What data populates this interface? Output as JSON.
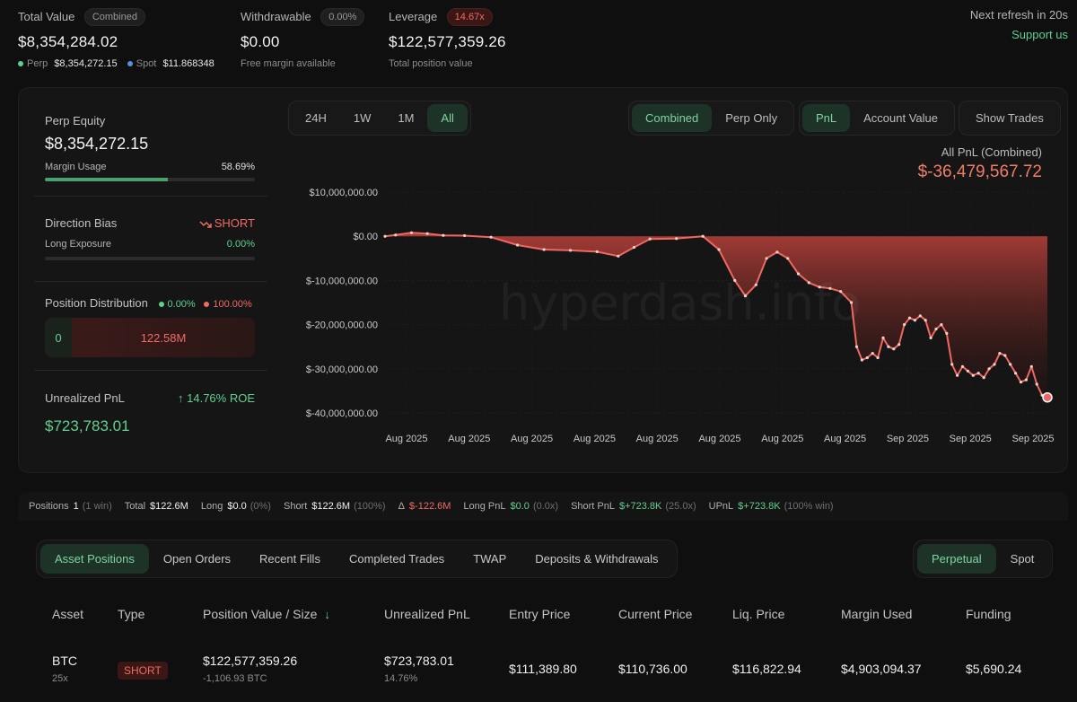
{
  "top": {
    "total_value": {
      "label": "Total Value",
      "pill": "Combined",
      "value": "$8,354,284.02",
      "perp_label": "Perp",
      "perp_value": "$8,354,272.15",
      "spot_label": "Spot",
      "spot_value": "$11.868348"
    },
    "withdrawable": {
      "label": "Withdrawable",
      "pill": "0.00%",
      "value": "$0.00",
      "sub": "Free margin available"
    },
    "leverage": {
      "label": "Leverage",
      "pill": "14.67x",
      "value": "$122,577,359.26",
      "sub": "Total position value"
    },
    "refresh": "Next refresh in 20s",
    "support": "Support us"
  },
  "left_panel": {
    "perp_equity_label": "Perp Equity",
    "perp_equity_value": "$8,354,272.15",
    "margin_usage_label": "Margin Usage",
    "margin_usage_value": "58.69%",
    "margin_usage_fraction": 0.5869,
    "direction_bias_label": "Direction Bias",
    "direction_bias_value": "SHORT",
    "long_exposure_label": "Long Exposure",
    "long_exposure_value": "0.00%",
    "position_distribution_label": "Position Distribution",
    "long_pct": "0.00%",
    "short_pct": "100.00%",
    "long_amount": "0",
    "short_amount": "122.58M",
    "unrealized_pnl_label": "Unrealized PnL",
    "roe": "14.76% ROE",
    "unrealized_pnl_value": "$723,783.01"
  },
  "controls": {
    "ranges": [
      "24H",
      "1W",
      "1M",
      "All"
    ],
    "active_range": "All",
    "modes": [
      "Combined",
      "Perp Only"
    ],
    "active_mode": "Combined",
    "metrics": [
      "PnL",
      "Account Value"
    ],
    "active_metric": "PnL",
    "show_trades": "Show Trades"
  },
  "chart_header": {
    "label": "All PnL (Combined)",
    "value": "$-36,479,567.72"
  },
  "watermark": "hyperdash.info",
  "chart_data": {
    "type": "area",
    "x_tick_labels": [
      "Aug 2025",
      "Aug 2025",
      "Aug 2025",
      "Aug 2025",
      "Aug 2025",
      "Aug 2025",
      "Aug 2025",
      "Aug 2025",
      "Sep 2025",
      "Sep 2025",
      "Sep 2025"
    ],
    "y_tick_labels": [
      "$10,000,000.00",
      "$0.00",
      "$-10,000,000.00",
      "$-20,000,000.00",
      "$-30,000,000.00",
      "$-40,000,000.00"
    ],
    "y_ticks": [
      10000000,
      0,
      -10000000,
      -20000000,
      -30000000,
      -40000000
    ],
    "ylim": [
      -40000000,
      10000000
    ],
    "x_range": [
      0,
      100
    ],
    "series": [
      {
        "points": [
          [
            0,
            0
          ],
          [
            2,
            300000
          ],
          [
            5,
            800000
          ],
          [
            8,
            600000
          ],
          [
            11,
            200000
          ],
          [
            15,
            150000
          ],
          [
            20,
            -200000
          ],
          [
            25,
            -2000000
          ],
          [
            30,
            -3000000
          ],
          [
            35,
            -3200000
          ],
          [
            40,
            -3500000
          ],
          [
            44,
            -4500000
          ],
          [
            47,
            -2500000
          ],
          [
            50,
            -600000
          ],
          [
            55,
            -500000
          ],
          [
            60,
            0
          ],
          [
            63,
            -3000000
          ],
          [
            66,
            -10000000
          ],
          [
            68,
            -13500000
          ],
          [
            70,
            -11000000
          ],
          [
            72,
            -5000000
          ],
          [
            74,
            -3600000
          ],
          [
            76,
            -5000000
          ],
          [
            78,
            -8500000
          ],
          [
            80,
            -10500000
          ],
          [
            82,
            -11500000
          ],
          [
            84,
            -11800000
          ],
          [
            86,
            -12500000
          ],
          [
            88,
            -15000000
          ],
          [
            89,
            -25000000
          ],
          [
            90,
            -28000000
          ],
          [
            91,
            -27500000
          ],
          [
            92,
            -26500000
          ],
          [
            93,
            -27500000
          ],
          [
            94,
            -23000000
          ],
          [
            95,
            -25000000
          ],
          [
            96,
            -25500000
          ],
          [
            97,
            -24500000
          ],
          [
            98,
            -20000000
          ],
          [
            99,
            -18500000
          ],
          [
            100,
            -19000000
          ]
        ],
        "points_tail": [
          [
            100,
            -19000000
          ],
          [
            101,
            -18000000
          ],
          [
            102,
            -19000000
          ],
          [
            103,
            -23000000
          ],
          [
            104,
            -21000000
          ],
          [
            105,
            -20000000
          ],
          [
            106,
            -22000000
          ],
          [
            107,
            -29000000
          ],
          [
            108,
            -31500000
          ],
          [
            109,
            -29500000
          ],
          [
            110,
            -30500000
          ],
          [
            111,
            -31500000
          ],
          [
            112,
            -31000000
          ],
          [
            113,
            -32000000
          ],
          [
            114,
            -30000000
          ],
          [
            115,
            -29000000
          ],
          [
            116,
            -26500000
          ],
          [
            117,
            -27000000
          ],
          [
            118,
            -29000000
          ],
          [
            119,
            -31000000
          ],
          [
            120,
            -33000000
          ],
          [
            121,
            -32500000
          ],
          [
            122,
            -29500000
          ],
          [
            123,
            -33500000
          ],
          [
            124,
            -36000000
          ],
          [
            125,
            -36479567
          ]
        ]
      }
    ]
  },
  "summary_row": [
    {
      "k": "Positions",
      "v": "1",
      "extra": "(1 win)"
    },
    {
      "k": "Total",
      "v": "$122.6M",
      "extra": ""
    },
    {
      "k": "Long",
      "v": "$0.0",
      "extra": "(0%)"
    },
    {
      "k": "Short",
      "v": "$122.6M",
      "extra": "(100%)"
    },
    {
      "k": "Δ",
      "v": "$-122.6M",
      "extra": ""
    },
    {
      "k": "Long PnL",
      "v": "$0.0",
      "extra": "(0.0x)"
    },
    {
      "k": "Short PnL",
      "v": "$+723.8K",
      "extra": "(25.0x)"
    },
    {
      "k": "UPnL",
      "v": "$+723.8K",
      "extra": "(100% win)"
    }
  ],
  "tabs": [
    "Asset Positions",
    "Open Orders",
    "Recent Fills",
    "Completed Trades",
    "TWAP",
    "Deposits & Withdrawals"
  ],
  "active_tab": "Asset Positions",
  "market_tabs": [
    "Perpetual",
    "Spot"
  ],
  "active_market_tab": "Perpetual",
  "table": {
    "headers": [
      "Asset",
      "Type",
      "Position Value / Size",
      "Unrealized PnL",
      "Entry Price",
      "Current Price",
      "Liq. Price",
      "Margin Used",
      "Funding"
    ],
    "rows": [
      {
        "asset": "BTC",
        "leverage": "25x",
        "type": "SHORT",
        "position_value": "$122,577,359.26",
        "size": "-1,106.93 BTC",
        "upnl": "$723,783.01",
        "upnl_pct": "14.76%",
        "entry": "$111,389.80",
        "current": "$110,736.00",
        "liq": "$116,822.94",
        "margin": "$4,903,094.37",
        "funding": "$5,690.24"
      }
    ]
  },
  "colors": {
    "accent_green": "#5fd08f",
    "loss_red": "#ef6b63",
    "background": "#0f0f0f",
    "card": "#151515"
  }
}
